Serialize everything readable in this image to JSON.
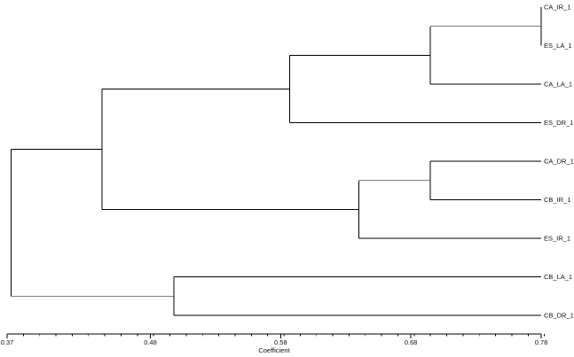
{
  "dendrogram": {
    "x_axis_label": "Coefficient",
    "x_range": [
      0.37,
      0.78
    ],
    "major_ticks": [
      {
        "value": 0.37,
        "label": "0.37"
      },
      {
        "value": 0.48,
        "label": "0.48"
      },
      {
        "value": 0.58,
        "label": "0.58"
      },
      {
        "value": 0.68,
        "label": "0.68"
      },
      {
        "value": 0.78,
        "label": "0.78"
      }
    ],
    "minor_tick_step": 0.0125,
    "colors": {
      "lines": "#000000",
      "text": "#111111",
      "background": "#ffffff"
    },
    "leaves": [
      {
        "id": "CA_IR_1",
        "label": "CA_IR_1"
      },
      {
        "id": "ES_LA_1",
        "label": "ES_LA_1"
      },
      {
        "id": "CA_LA_1",
        "label": "CA_LA_1"
      },
      {
        "id": "ES_DR_1",
        "label": "ES_DR_1"
      },
      {
        "id": "CA_DR_1",
        "label": "CA_DR_1"
      },
      {
        "id": "CB_IR_1",
        "label": "CB_IR_1"
      },
      {
        "id": "ES_IR_1",
        "label": "ES_IR_1"
      },
      {
        "id": "CB_LA_1",
        "label": "CB_LA_1"
      },
      {
        "id": "CB_DR_1",
        "label": "CB_DR_1"
      }
    ],
    "merges": [
      {
        "id": "m1",
        "children": [
          "CA_IR_1",
          "ES_LA_1"
        ],
        "coefficient": 0.78
      },
      {
        "id": "m2",
        "children": [
          "m1",
          "CA_LA_1"
        ],
        "coefficient": 0.695
      },
      {
        "id": "m3",
        "children": [
          "m2",
          "ES_DR_1"
        ],
        "coefficient": 0.587
      },
      {
        "id": "m4",
        "children": [
          "CA_DR_1",
          "CB_IR_1"
        ],
        "coefficient": 0.695
      },
      {
        "id": "m5",
        "children": [
          "m4",
          "ES_IR_1"
        ],
        "coefficient": 0.64
      },
      {
        "id": "m6",
        "children": [
          "m3",
          "m5"
        ],
        "coefficient": 0.443
      },
      {
        "id": "m7",
        "children": [
          "CB_LA_1",
          "CB_DR_1"
        ],
        "coefficient": 0.498
      },
      {
        "id": "m8",
        "children": [
          "m6",
          "m7"
        ],
        "coefficient": 0.373
      }
    ]
  }
}
